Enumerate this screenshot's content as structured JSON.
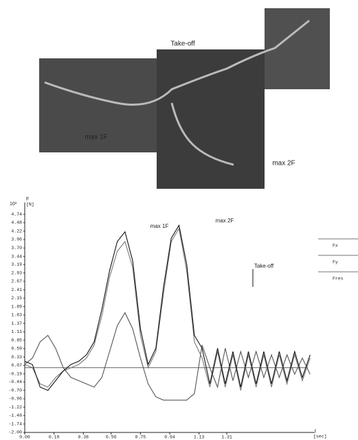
{
  "photo_labels": [
    "Take-off",
    "max 1F",
    "max 2F"
  ],
  "chart_data": {
    "type": "line",
    "y_scale_label": "10³",
    "y_label": "F",
    "y_unit": "[N]",
    "x_label": "t",
    "x_unit": "[sec]",
    "annotations": [
      "max 1F",
      "max 2F",
      "Take-off"
    ],
    "legend": "right",
    "grid": false,
    "xlim": [
      0,
      1.88
    ],
    "xticks": [
      {
        "value": 0,
        "label": "0.00"
      },
      0.19,
      0.38,
      0.56,
      0.75,
      0.94,
      1.13,
      1.31
    ],
    "ylim": [
      -2,
      5
    ],
    "yticks": [
      4.74,
      4.48,
      4.22,
      3.96,
      {
        "value": 3.7,
        "label": "3.70"
      },
      3.44,
      3.19,
      2.93,
      2.67,
      2.41,
      2.15,
      1.89,
      1.63,
      1.37,
      1.11,
      0.85,
      0.59,
      0.33,
      0.07,
      -0.19,
      -0.44,
      {
        "value": -0.7,
        "label": "-0.70"
      },
      -0.96,
      -1.22,
      -1.48,
      -1.74,
      {
        "value": -2,
        "label": "-2.00"
      }
    ],
    "x": [
      0,
      0.05,
      0.1,
      0.15,
      0.2,
      0.25,
      0.3,
      0.35,
      0.4,
      0.45,
      0.5,
      0.55,
      0.6,
      0.65,
      0.7,
      0.75,
      0.8,
      0.85,
      0.9,
      0.95,
      1.0,
      1.05,
      1.1,
      1.15,
      1.2,
      1.25,
      1.3,
      1.35,
      1.4,
      1.45,
      1.5,
      1.55,
      1.6,
      1.65,
      1.7,
      1.75,
      1.8,
      1.85
    ],
    "series": [
      {
        "name": "Fx",
        "color": "#555555",
        "values": [
          0.1,
          0.3,
          0.8,
          1.0,
          0.6,
          0.0,
          -0.3,
          -0.4,
          -0.5,
          -0.6,
          -0.3,
          0.5,
          1.3,
          1.7,
          1.2,
          0.3,
          -0.5,
          -0.9,
          -1.0,
          -1.0,
          -1.0,
          -1.0,
          -0.8,
          0.7,
          0.0,
          -0.6,
          0.6,
          -0.4,
          0.5,
          -0.3,
          0.5,
          -0.3,
          0.4,
          -0.3,
          0.4,
          -0.2,
          0.3,
          -0.2
        ]
      },
      {
        "name": "Fy",
        "color": "#777777",
        "values": [
          0.1,
          0.0,
          -0.5,
          -0.6,
          -0.3,
          -0.1,
          0.0,
          0.1,
          0.3,
          0.7,
          1.6,
          2.8,
          3.6,
          3.9,
          3.1,
          1.0,
          0.0,
          0.5,
          2.3,
          3.9,
          4.3,
          3.0,
          0.8,
          0.3,
          -0.6,
          0.5,
          -0.6,
          0.4,
          -0.7,
          0.4,
          -0.6,
          0.4,
          -0.6,
          0.4,
          -0.5,
          0.4,
          -0.4,
          0.3
        ]
      },
      {
        "name": "Fres",
        "color": "#111111",
        "values": [
          0.2,
          0.1,
          -0.6,
          -0.7,
          -0.4,
          -0.1,
          0.1,
          0.2,
          0.4,
          0.8,
          1.8,
          3.0,
          3.9,
          4.2,
          3.3,
          1.2,
          0.1,
          0.6,
          2.5,
          4.0,
          4.4,
          3.2,
          1.0,
          0.6,
          -0.5,
          0.6,
          -0.5,
          0.5,
          -0.6,
          0.5,
          -0.5,
          0.5,
          -0.5,
          0.5,
          -0.4,
          0.5,
          -0.3,
          0.4
        ]
      }
    ]
  }
}
